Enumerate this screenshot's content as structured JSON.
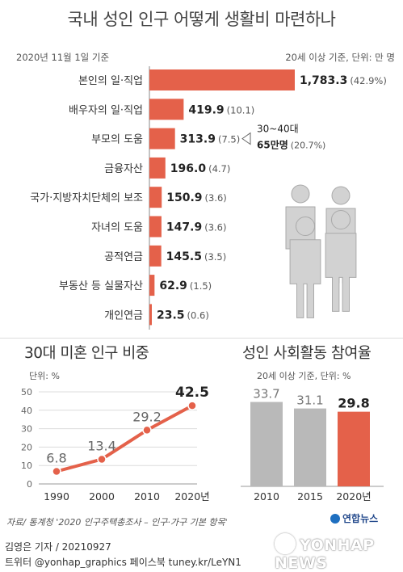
{
  "title": "국내 성인 인구 어떻게 생활비 마련하나",
  "date_note": "2020년 11월 1일 기준",
  "unit_note": "20세 이상 기준, 단위: 만 명",
  "colors": {
    "accent": "#e4614a",
    "gray": "#b9b9b9",
    "figure": "#d2d2d2"
  },
  "chart_data": [
    {
      "type": "bar",
      "orientation": "horizontal",
      "title": "국내 성인 인구 어떻게 생활비 마련하나",
      "categories": [
        "본인의 일·직업",
        "배우자의 일·직업",
        "부모의 도움",
        "금융자산",
        "국가·지방자치단체의 보조",
        "자녀의 도움",
        "공적연금",
        "부동산 등 실물자산",
        "개인연금"
      ],
      "values": [
        1783.3,
        419.9,
        313.9,
        196.0,
        150.9,
        147.9,
        145.5,
        62.9,
        23.5
      ],
      "value_labels": [
        "1,783.3",
        "419.9",
        "313.9",
        "196.0",
        "150.9",
        "147.9",
        "145.5",
        "62.9",
        "23.5"
      ],
      "percent_labels": [
        "(42.9%)",
        "(10.1)",
        "(7.5)",
        "(4.7)",
        "(3.6)",
        "(3.6)",
        "(3.5)",
        "(1.5)",
        "(0.6)"
      ],
      "annotation": {
        "line1": "30~40대",
        "line2": "65만명",
        "line2_pct": "(20.7%)"
      }
    },
    {
      "type": "line",
      "title": "30대 미혼 인구 비중",
      "ylabel": "단위: %",
      "x": [
        "1990",
        "2000",
        "2010",
        "2020년"
      ],
      "values": [
        6.8,
        13.4,
        29.2,
        42.5
      ],
      "value_labels": [
        "6.8",
        "13.4",
        "29.2",
        "42.5"
      ],
      "ylim": [
        0,
        50
      ],
      "yticks": [
        "0",
        "10",
        "20",
        "30",
        "40",
        "50"
      ],
      "grid": true
    },
    {
      "type": "bar",
      "title": "성인 사회활동 참여율",
      "ylabel": "20세 이상 기준, 단위: %",
      "categories": [
        "2010",
        "2015",
        "2020년"
      ],
      "values": [
        33.7,
        31.1,
        29.8
      ],
      "value_labels": [
        "33.7",
        "31.1",
        "29.8"
      ]
    }
  ],
  "source": "자료/ 통계청 '2020 인구주택총조사 – 인구·가구 기본 항목'",
  "reporter": "김영은 기자 / 20210927",
  "social": "트위터 @yonhap_graphics  페이스북 tuney.kr/LeYN1",
  "logo_text": "연합뉴스",
  "watermark": "YONHAP NEWS"
}
